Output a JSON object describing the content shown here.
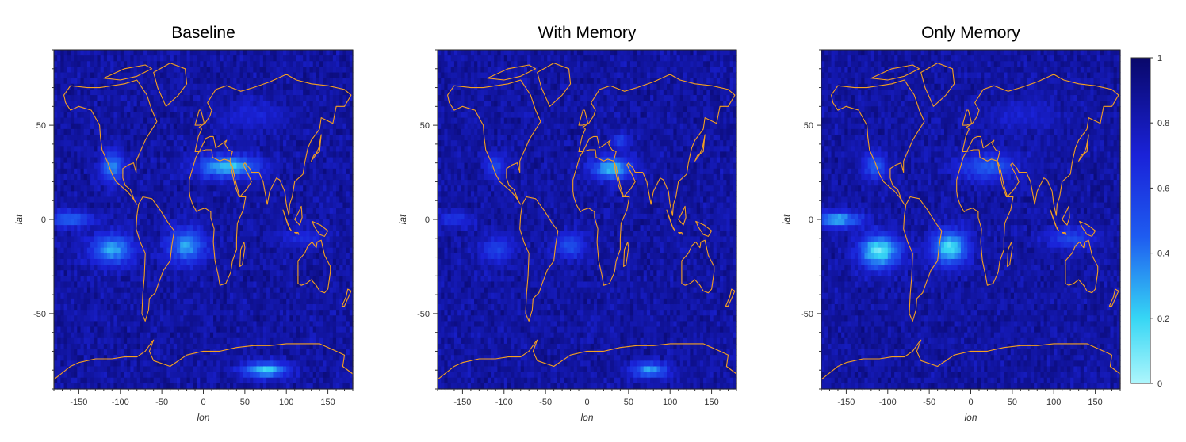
{
  "figure": {
    "panels": [
      {
        "title": "Baseline",
        "xlabel": "lon",
        "ylabel": "lat",
        "hotspots": [
          {
            "lon": -110,
            "lat": 28,
            "slon": 14,
            "slat": 8,
            "v": 0.35
          },
          {
            "lon": 30,
            "lat": 28,
            "slon": 38,
            "slat": 6,
            "v": 0.22
          },
          {
            "lon": -160,
            "lat": 0,
            "slon": 25,
            "slat": 4,
            "v": 0.4
          },
          {
            "lon": -110,
            "lat": -16,
            "slon": 25,
            "slat": 8,
            "v": 0.28
          },
          {
            "lon": -20,
            "lat": -14,
            "slon": 22,
            "slat": 9,
            "v": 0.3
          },
          {
            "lon": 75,
            "lat": -80,
            "slon": 28,
            "slat": 4,
            "v": 0.2
          },
          {
            "lon": 120,
            "lat": -10,
            "slon": 30,
            "slat": 5,
            "v": 0.65
          },
          {
            "lon": 60,
            "lat": 55,
            "slon": 40,
            "slat": 8,
            "v": 0.7
          }
        ]
      },
      {
        "title": "With Memory",
        "xlabel": "lon",
        "ylabel": "lat",
        "hotspots": [
          {
            "lon": -110,
            "lat": 28,
            "slon": 12,
            "slat": 7,
            "v": 0.55
          },
          {
            "lon": 30,
            "lat": 27,
            "slon": 25,
            "slat": 6,
            "v": 0.25
          },
          {
            "lon": -160,
            "lat": 0,
            "slon": 22,
            "slat": 4,
            "v": 0.6
          },
          {
            "lon": -110,
            "lat": -16,
            "slon": 20,
            "slat": 7,
            "v": 0.55
          },
          {
            "lon": -20,
            "lat": -14,
            "slon": 18,
            "slat": 7,
            "v": 0.5
          },
          {
            "lon": 75,
            "lat": -80,
            "slon": 22,
            "slat": 4,
            "v": 0.3
          },
          {
            "lon": 40,
            "lat": 42,
            "slon": 10,
            "slat": 4,
            "v": 0.55
          }
        ]
      },
      {
        "title": "Only Memory",
        "xlabel": "lon",
        "ylabel": "lat",
        "hotspots": [
          {
            "lon": -115,
            "lat": 28,
            "slon": 14,
            "slat": 7,
            "v": 0.45
          },
          {
            "lon": 20,
            "lat": 28,
            "slon": 35,
            "slat": 7,
            "v": 0.45
          },
          {
            "lon": -160,
            "lat": 0,
            "slon": 28,
            "slat": 4,
            "v": 0.25
          },
          {
            "lon": -110,
            "lat": -17,
            "slon": 25,
            "slat": 9,
            "v": 0.12
          },
          {
            "lon": -25,
            "lat": -15,
            "slon": 22,
            "slat": 9,
            "v": 0.15
          },
          {
            "lon": 120,
            "lat": -10,
            "slon": 30,
            "slat": 6,
            "v": 0.55
          },
          {
            "lon": 60,
            "lat": 55,
            "slon": 45,
            "slat": 8,
            "v": 0.72
          }
        ]
      }
    ],
    "colorbar": {
      "ticks": [
        "1",
        "0.8",
        "0.6",
        "0.4",
        "0.2",
        "0"
      ],
      "range": [
        0,
        1
      ],
      "colors": [
        "#aef6fc",
        "#36d6f4",
        "#1e5cf0",
        "#1a22d8",
        "#09086a"
      ]
    },
    "outline_color": "#f5a020"
  },
  "chart_data": [
    {
      "type": "heatmap",
      "title": "Baseline",
      "xlabel": "lon",
      "ylabel": "lat",
      "xlim": [
        -180,
        180
      ],
      "ylim": [
        -90,
        90
      ],
      "xticks": [
        "-150",
        "-100",
        "-50",
        "0",
        "50",
        "100",
        "150"
      ],
      "yticks": [
        "50",
        "0",
        "-50"
      ],
      "colorscale_range": [
        0,
        1
      ],
      "notes_value_range": [
        0.1,
        0.9
      ]
    },
    {
      "type": "heatmap",
      "title": "With Memory",
      "xlabel": "lon",
      "ylabel": "lat",
      "xlim": [
        -180,
        180
      ],
      "ylim": [
        -90,
        90
      ],
      "xticks": [
        "-150",
        "-100",
        "-50",
        "0",
        "50",
        "100",
        "150"
      ],
      "yticks": [
        "50",
        "0",
        "-50"
      ],
      "colorscale_range": [
        0,
        1
      ]
    },
    {
      "type": "heatmap",
      "title": "Only Memory",
      "xlabel": "lon",
      "ylabel": "lat",
      "xlim": [
        -180,
        180
      ],
      "ylim": [
        -90,
        90
      ],
      "xticks": [
        "-150",
        "-100",
        "-50",
        "0",
        "50",
        "100",
        "150"
      ],
      "yticks": [
        "50",
        "0",
        "-50"
      ],
      "colorscale_range": [
        0,
        1
      ]
    }
  ]
}
